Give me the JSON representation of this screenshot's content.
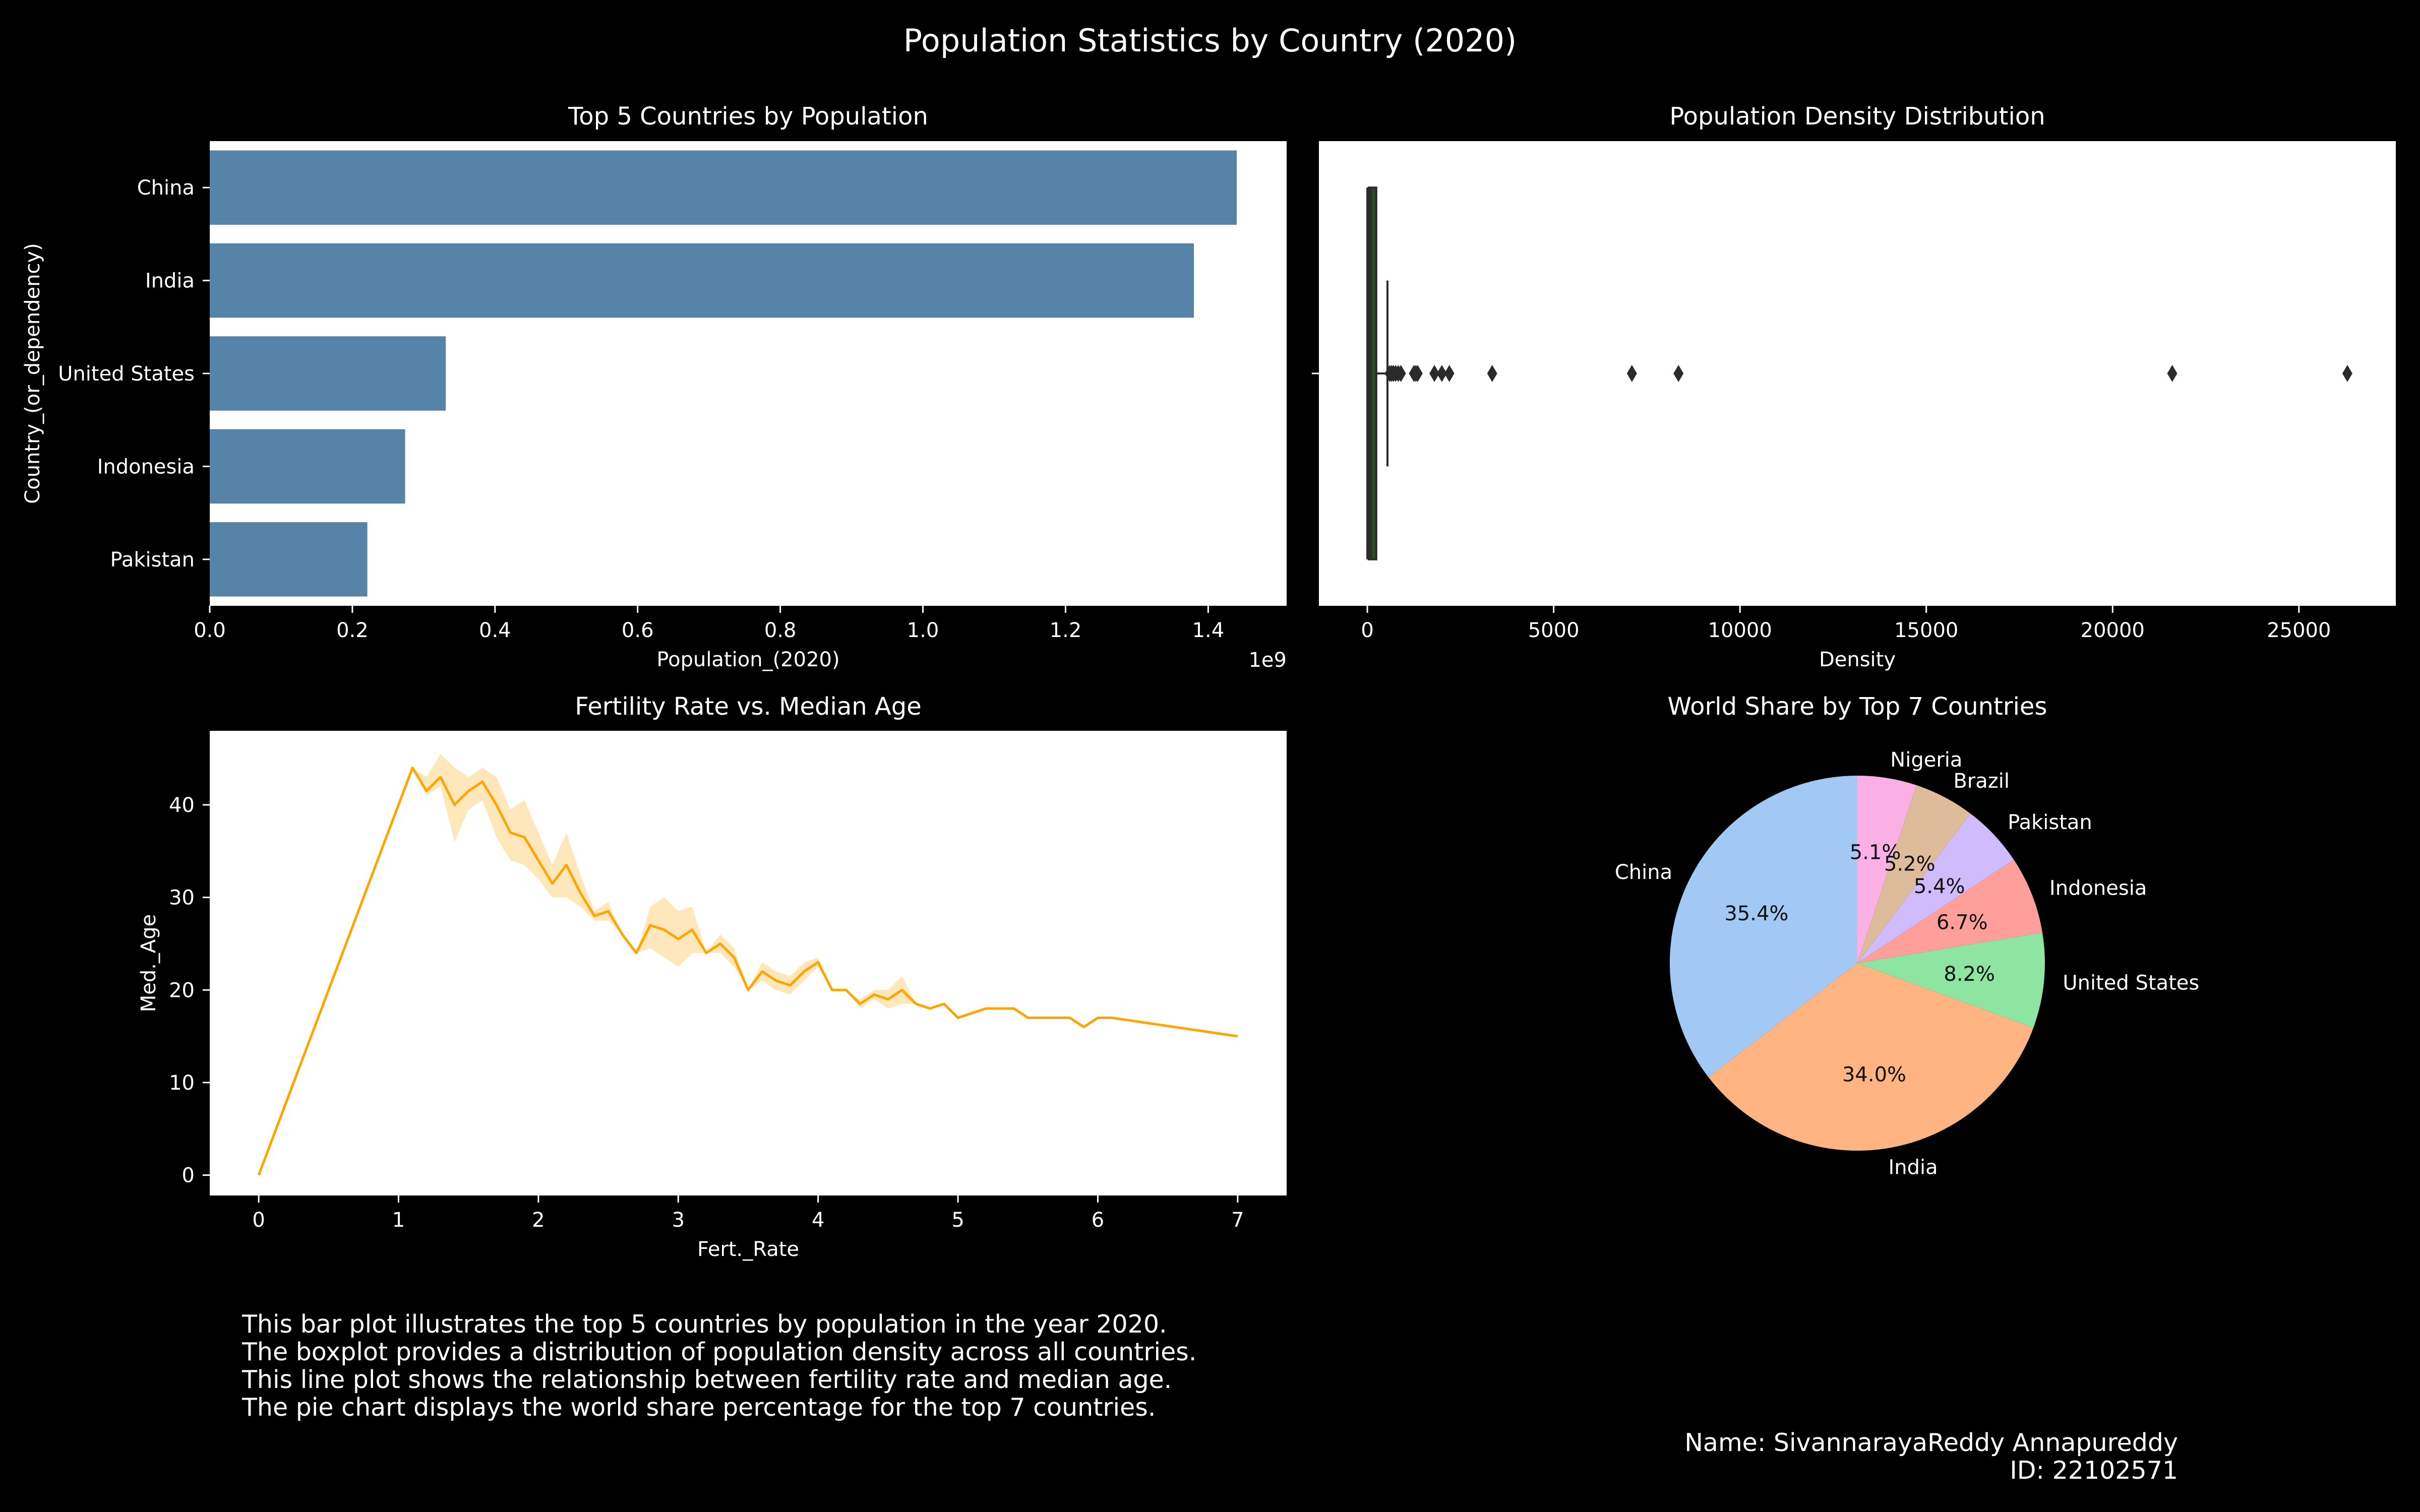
{
  "figure": {
    "title": "Population Statistics by Country (2020)"
  },
  "colors": {
    "background": "#000000",
    "bar": "#5683a8",
    "box_fill": "#2c4a24",
    "line": "#ffa500",
    "band": "#ffe3b0",
    "pie": [
      "#a1c9f4",
      "#ffb482",
      "#8de5a1",
      "#ff9f9b",
      "#d0bbff",
      "#debb9b",
      "#fab0e4"
    ]
  },
  "chart_data": [
    {
      "id": "bar",
      "type": "bar",
      "orientation": "horizontal",
      "title": "Top 5 Countries by Population",
      "xlabel": "Population_(2020)",
      "ylabel": "Country_(or_dependency)",
      "offset_label": "1e9",
      "categories": [
        "China",
        "India",
        "United States",
        "Indonesia",
        "Pakistan"
      ],
      "values": [
        1.44,
        1.38,
        0.331,
        0.274,
        0.221
      ],
      "xlim": [
        0,
        1.51
      ],
      "xticks": [
        0,
        0.2,
        0.4,
        0.6,
        0.8,
        1.0,
        1.2,
        1.4
      ],
      "xtick_labels": [
        "0.0",
        "0.2",
        "0.4",
        "0.6",
        "0.8",
        "1.0",
        "1.2",
        "1.4"
      ]
    },
    {
      "id": "box",
      "type": "box",
      "title": "Population Density Distribution",
      "xlabel": "Density",
      "xlim": [
        -1300,
        27600
      ],
      "xticks": [
        0,
        5000,
        10000,
        15000,
        20000,
        25000
      ],
      "box": {
        "whisker_low": 0,
        "q1": 37,
        "median": 95,
        "q3": 240,
        "whisker_high": 540
      },
      "outliers": [
        600,
        650,
        700,
        760,
        830,
        900,
        1250,
        1300,
        1350,
        1800,
        2000,
        2200,
        3350,
        7100,
        8350,
        21600,
        26300
      ]
    },
    {
      "id": "line",
      "type": "line",
      "title": "Fertility Rate vs. Median Age",
      "xlabel": "Fert._Rate",
      "ylabel": "Med._Age",
      "xlim": [
        -0.35,
        7.35
      ],
      "ylim": [
        -2.2,
        48
      ],
      "xticks": [
        0,
        1,
        2,
        3,
        4,
        5,
        6,
        7
      ],
      "yticks": [
        0,
        10,
        20,
        30,
        40
      ],
      "x": [
        0,
        1.1,
        1.2,
        1.3,
        1.4,
        1.5,
        1.6,
        1.7,
        1.8,
        1.9,
        2.0,
        2.1,
        2.2,
        2.3,
        2.4,
        2.5,
        2.6,
        2.7,
        2.8,
        2.9,
        3.0,
        3.1,
        3.2,
        3.3,
        3.4,
        3.5,
        3.6,
        3.7,
        3.8,
        3.9,
        4.0,
        4.1,
        4.2,
        4.3,
        4.4,
        4.5,
        4.6,
        4.7,
        4.8,
        4.9,
        5.0,
        5.1,
        5.2,
        5.3,
        5.4,
        5.5,
        5.6,
        5.7,
        5.8,
        5.9,
        6.0,
        6.1,
        7.0
      ],
      "y": [
        0,
        44,
        41.5,
        43,
        40,
        41.5,
        42.5,
        40,
        37,
        36.5,
        34,
        31.5,
        33.5,
        30.5,
        28,
        28.5,
        26,
        24,
        27,
        26.5,
        25.5,
        26.5,
        24,
        25,
        23.5,
        20,
        22,
        21,
        20.5,
        22,
        23,
        20,
        20,
        18.5,
        19.5,
        19,
        20,
        18.5,
        18,
        18.5,
        17,
        17.5,
        18,
        18,
        18,
        17,
        17,
        17,
        17,
        16,
        17,
        17,
        15
      ],
      "y_low": [
        0,
        44,
        41,
        42,
        36,
        39.5,
        40.5,
        36.5,
        34,
        33.5,
        32,
        30,
        30,
        29,
        27.5,
        27.5,
        26,
        24,
        24.5,
        23.5,
        22.5,
        24,
        24,
        24,
        22.5,
        20,
        21,
        20,
        19.5,
        21,
        22.5,
        20,
        20,
        18,
        19,
        18,
        18.5,
        18.5,
        18,
        18.5,
        17,
        17.5,
        18,
        18,
        18,
        17,
        17,
        17,
        17,
        16,
        17,
        17,
        15
      ],
      "y_high": [
        0,
        44,
        43,
        45.5,
        44,
        43,
        44,
        43,
        39.5,
        40.5,
        37,
        33.5,
        37,
        32.5,
        28.5,
        29.5,
        26,
        24,
        29,
        30,
        28.5,
        29,
        24,
        26,
        24.5,
        20,
        23,
        22,
        21.5,
        23,
        23.5,
        20,
        20,
        19,
        20,
        20,
        21.5,
        18.5,
        18,
        18.5,
        17,
        17.5,
        18,
        18,
        18,
        17,
        17,
        17,
        17,
        16,
        17,
        17,
        15
      ]
    },
    {
      "id": "pie",
      "type": "pie",
      "title": "World Share by Top 7 Countries",
      "labels": [
        "China",
        "India",
        "United States",
        "Indonesia",
        "Pakistan",
        "Brazil",
        "Nigeria"
      ],
      "values": [
        35.4,
        34.0,
        8.2,
        6.7,
        5.4,
        5.2,
        5.1
      ],
      "pct_labels": [
        "35.4%",
        "34.0%",
        "8.2%",
        "6.7%",
        "5.4%",
        "5.2%",
        "5.1%"
      ],
      "start_angle": 90,
      "direction": "counterclockwise"
    }
  ],
  "notes": [
    "This bar plot illustrates the top 5 countries by population in the year 2020.",
    "The boxplot provides a distribution of population density across all countries.",
    "This line plot shows the relationship between fertility rate and median age.",
    "The pie chart displays the world share percentage for the top 7 countries."
  ],
  "author": {
    "name": "Name: SivannarayaReddy Annapureddy",
    "id": "ID: 22102571"
  }
}
